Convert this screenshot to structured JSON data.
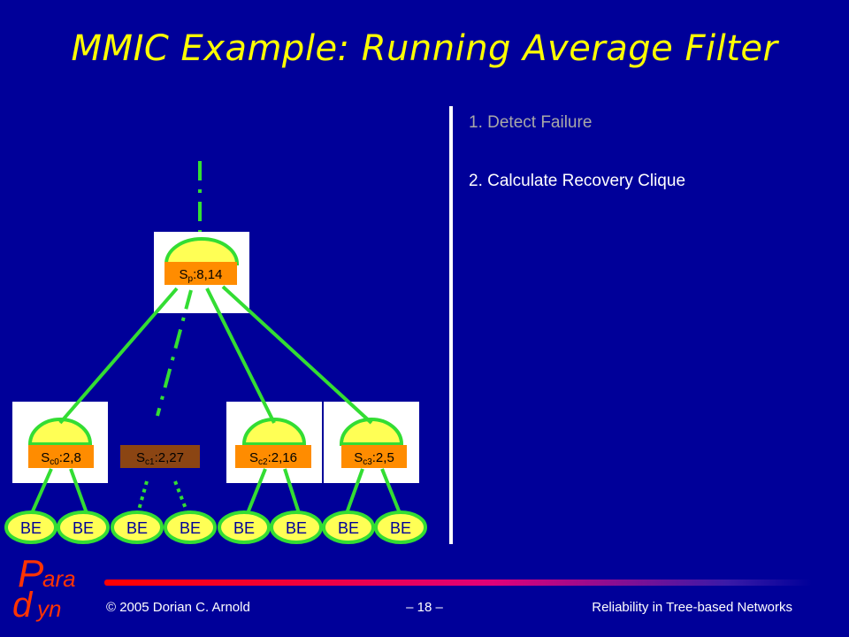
{
  "slide": {
    "title": "MMIC Example: Running Average Filter",
    "steps": [
      "1. Detect Failure",
      "2. Calculate Recovery Clique"
    ],
    "footer": {
      "copyright": "© 2005 Dorian C. Arnold",
      "page": "– 18 –",
      "subject": "Reliability in Tree-based Networks"
    },
    "logo": {
      "text_top": "P ara",
      "text_bottom": "dyn"
    }
  },
  "tree": {
    "root": {
      "name": "S",
      "sub": "p",
      "value": ":8,14"
    },
    "children": [
      {
        "name": "S",
        "sub": "c0",
        "value": ":2,8",
        "failed": false
      },
      {
        "name": "S",
        "sub": "c1",
        "value": ":2,27",
        "failed": true
      },
      {
        "name": "S",
        "sub": "c2",
        "value": ":2,16",
        "failed": false
      },
      {
        "name": "S",
        "sub": "c3",
        "value": ":2,5",
        "failed": false
      }
    ],
    "leaf_label": "BE",
    "leaf_count": 8
  },
  "colors": {
    "background": "#000099",
    "title": "#ffff00",
    "node_label": "#ff8c00",
    "failed_label": "#8b4513",
    "link": "#33dd33",
    "leaf_fill": "#ffff55"
  }
}
